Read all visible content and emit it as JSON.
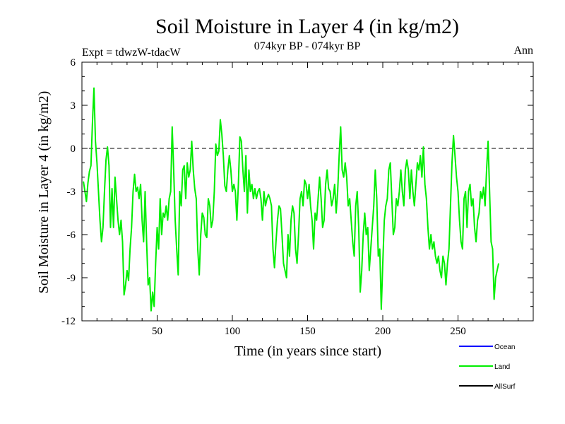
{
  "chart_data": {
    "type": "line",
    "title": "Soil Moisture in Layer 4 (in kg/m2)",
    "subtitle": "074kyr BP - 074kyr BP",
    "left_note": "Expt = tdwzW-tdacW",
    "right_note": "Ann",
    "xlabel": "Time (in years since start)",
    "ylabel": "Soil Moisture in Layer 4 (in kg/m2)",
    "xlim": [
      0,
      300
    ],
    "ylim": [
      -12,
      6
    ],
    "x_ticks": [
      "50",
      "100",
      "150",
      "200",
      "250"
    ],
    "x_tick_values": [
      50,
      100,
      150,
      200,
      250
    ],
    "y_ticks": [
      "6",
      "3",
      "0",
      "-3",
      "-6",
      "-9",
      "-12"
    ],
    "y_tick_values": [
      6,
      3,
      0,
      -3,
      -6,
      -9,
      -12
    ],
    "zero_line": true,
    "legend_position": "bottom-right",
    "series": [
      {
        "name": "Ocean",
        "color": "#0000ff",
        "values": []
      },
      {
        "name": "Land",
        "color": "#00ee00",
        "x_start": 1,
        "x_step": 1,
        "values": [
          -2.3,
          -3.0,
          -3.7,
          -2.4,
          -1.6,
          -1.2,
          1.8,
          4.2,
          0.5,
          -1.0,
          -3.0,
          -5.0,
          -6.5,
          -5.5,
          -3.0,
          -0.8,
          0.1,
          -1.2,
          -5.5,
          -2.8,
          -5.5,
          -2.0,
          -3.5,
          -5.0,
          -6.0,
          -5.0,
          -6.5,
          -10.2,
          -9.5,
          -8.5,
          -9.2,
          -7.0,
          -5.5,
          -3.0,
          -1.8,
          -3.0,
          -2.7,
          -3.5,
          -2.5,
          -5.0,
          -6.5,
          -3.0,
          -6.5,
          -9.5,
          -9.0,
          -11.3,
          -10.0,
          -11.0,
          -8.0,
          -5.5,
          -7.0,
          -3.5,
          -6.0,
          -4.5,
          -4.8,
          -4.0,
          -5.0,
          -3.5,
          -3.0,
          1.5,
          -1.5,
          -5.0,
          -7.0,
          -8.8,
          -3.0,
          -4.0,
          -1.5,
          -1.2,
          -3.5,
          -1.0,
          -2.0,
          -1.5,
          0.5,
          -1.5,
          -2.8,
          -3.5,
          -7.0,
          -8.8,
          -6.0,
          -4.5,
          -4.8,
          -6.0,
          -6.2,
          -3.5,
          -4.0,
          -5.5,
          -5.0,
          -3.0,
          0.3,
          -0.5,
          -0.2,
          2.0,
          1.0,
          -0.5,
          -2.6,
          -3.0,
          -1.5,
          -0.5,
          -1.5,
          -3.0,
          -2.5,
          -3.0,
          -5.0,
          -2.5,
          0.8,
          0.5,
          -1.5,
          -3.0,
          -0.5,
          -4.5,
          -1.5,
          -3.0,
          -2.5,
          -3.5,
          -2.8,
          -3.5,
          -3.0,
          -2.8,
          -3.5,
          -5.0,
          -3.0,
          -4.0,
          -3.5,
          -3.2,
          -3.5,
          -4.0,
          -7.0,
          -8.3,
          -6.5,
          -5.0,
          -4.0,
          -4.2,
          -6.0,
          -8.0,
          -8.5,
          -9.0,
          -6.0,
          -7.5,
          -5.0,
          -4.0,
          -4.5,
          -7.0,
          -8.0,
          -6.0,
          -3.5,
          -3.0,
          -4.0,
          -2.2,
          -2.5,
          -3.5,
          -2.5,
          -4.0,
          -5.0,
          -7.0,
          -4.5,
          -5.0,
          -3.5,
          -2.0,
          -3.5,
          -5.5,
          -5.0,
          -2.5,
          -1.5,
          -2.8,
          -3.0,
          -4.0,
          -3.5,
          -2.5,
          -4.5,
          -3.0,
          -0.5,
          1.5,
          -1.5,
          -2.0,
          -1.0,
          -2.0,
          -4.0,
          -3.5,
          -5.0,
          -6.5,
          -7.5,
          -4.0,
          -3.0,
          -5.5,
          -10.0,
          -8.5,
          -6.0,
          -4.5,
          -6.0,
          -5.5,
          -8.5,
          -7.0,
          -5.5,
          -4.0,
          -1.5,
          -3.5,
          -7.5,
          -7.0,
          -11.2,
          -8.0,
          -5.0,
          -4.0,
          -3.5,
          -1.5,
          -1.0,
          -3.5,
          -6.0,
          -5.5,
          -3.5,
          -4.0,
          -3.0,
          -1.5,
          -3.0,
          -4.0,
          -1.5,
          -0.8,
          -1.5,
          -3.5,
          -1.5,
          -3.0,
          -4.0,
          -2.5,
          -1.0,
          -1.5,
          -0.5,
          -2.0,
          0.1,
          -2.5,
          -3.5,
          -5.5,
          -7.0,
          -6.0,
          -7.0,
          -6.5,
          -7.5,
          -8.0,
          -7.5,
          -8.5,
          -9.0,
          -7.5,
          -8.0,
          -9.5,
          -8.0,
          -7.0,
          -4.0,
          -1.0,
          0.9,
          -0.5,
          -2.0,
          -3.0,
          -5.0,
          -6.5,
          -7.0,
          -3.5,
          -3.0,
          -5.5,
          -3.0,
          -2.5,
          -4.0,
          -3.5,
          -5.5,
          -6.5,
          -5.0,
          -4.5,
          -3.0,
          -3.5,
          -2.7,
          -4.0,
          -1.5,
          0.5,
          -3.0,
          -6.5,
          -7.0,
          -10.5,
          -9.0,
          -8.5,
          -8.0
        ]
      },
      {
        "name": "AllSurf",
        "color": "#000000",
        "values": []
      }
    ]
  }
}
